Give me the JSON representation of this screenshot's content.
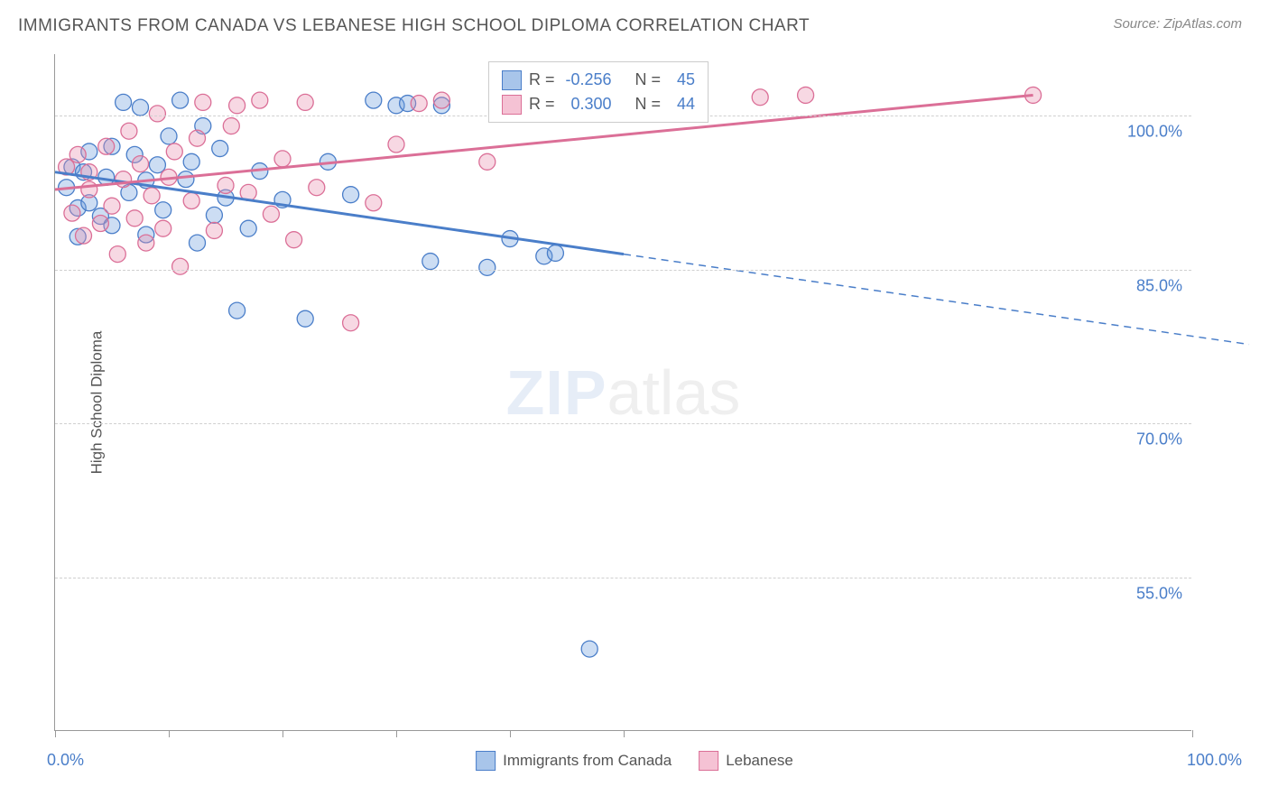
{
  "title": "IMMIGRANTS FROM CANADA VS LEBANESE HIGH SCHOOL DIPLOMA CORRELATION CHART",
  "source": "Source: ZipAtlas.com",
  "y_axis_title": "High School Diploma",
  "watermark": {
    "part1": "ZIP",
    "part2": "atlas"
  },
  "chart": {
    "type": "scatter",
    "background_color": "#ffffff",
    "grid_color": "#d0d0d0",
    "axis_color": "#999999",
    "text_color": "#555555",
    "value_color": "#4a7ec9",
    "xlim": [
      0,
      100
    ],
    "ylim": [
      40,
      106
    ],
    "x_ticks": [
      0,
      10,
      20,
      30,
      40,
      50,
      100
    ],
    "x_tick_labels": {
      "0": "0.0%",
      "100": "100.0%"
    },
    "y_gridlines": [
      55,
      70,
      85,
      100
    ],
    "y_tick_labels": [
      "55.0%",
      "70.0%",
      "85.0%",
      "100.0%"
    ],
    "marker_radius": 9,
    "marker_stroke_width": 1.3,
    "marker_fill_opacity": 0.35,
    "line_width": 3,
    "series": [
      {
        "name": "Immigrants from Canada",
        "color": "#6c9fde",
        "stroke": "#4a7ec9",
        "stats": {
          "R": "-0.256",
          "N": "45"
        },
        "trend": {
          "x1": 0,
          "y1": 94.5,
          "x2": 50,
          "y2": 86.5,
          "solid_to_x": 50,
          "dash_to_x": 105,
          "dash_to_y": 77.7
        },
        "points": [
          [
            1,
            93
          ],
          [
            1.5,
            95
          ],
          [
            2,
            91
          ],
          [
            2,
            88.2
          ],
          [
            2.5,
            94.5
          ],
          [
            3,
            96.5
          ],
          [
            3,
            91.5
          ],
          [
            4,
            90.2
          ],
          [
            4.5,
            94
          ],
          [
            5,
            97
          ],
          [
            5,
            89.3
          ],
          [
            6,
            101.3
          ],
          [
            6.5,
            92.5
          ],
          [
            7,
            96.2
          ],
          [
            7.5,
            100.8
          ],
          [
            8,
            88.4
          ],
          [
            8,
            93.7
          ],
          [
            9,
            95.2
          ],
          [
            9.5,
            90.8
          ],
          [
            10,
            98
          ],
          [
            11,
            101.5
          ],
          [
            11.5,
            93.8
          ],
          [
            12,
            95.5
          ],
          [
            12.5,
            87.6
          ],
          [
            13,
            99
          ],
          [
            14,
            90.3
          ],
          [
            14.5,
            96.8
          ],
          [
            15,
            92
          ],
          [
            16,
            81
          ],
          [
            17,
            89
          ],
          [
            18,
            94.6
          ],
          [
            20,
            91.8
          ],
          [
            22,
            80.2
          ],
          [
            24,
            95.5
          ],
          [
            26,
            92.3
          ],
          [
            28,
            101.5
          ],
          [
            30,
            101
          ],
          [
            31,
            101.2
          ],
          [
            33,
            85.8
          ],
          [
            34,
            101
          ],
          [
            38,
            85.2
          ],
          [
            40,
            88
          ],
          [
            43,
            86.3
          ],
          [
            44,
            86.6
          ],
          [
            47,
            48
          ]
        ]
      },
      {
        "name": "Lebanese",
        "color": "#e98fb0",
        "stroke": "#db6f97",
        "stats": {
          "R": "0.300",
          "N": "44"
        },
        "trend": {
          "x1": 0,
          "y1": 92.8,
          "x2": 86,
          "y2": 102,
          "solid_to_x": 86
        },
        "points": [
          [
            1,
            95
          ],
          [
            1.5,
            90.5
          ],
          [
            2,
            96.2
          ],
          [
            2.5,
            88.3
          ],
          [
            3,
            92.8
          ],
          [
            3,
            94.5
          ],
          [
            4,
            89.5
          ],
          [
            4.5,
            97
          ],
          [
            5,
            91.2
          ],
          [
            5.5,
            86.5
          ],
          [
            6,
            93.8
          ],
          [
            6.5,
            98.5
          ],
          [
            7,
            90
          ],
          [
            7.5,
            95.3
          ],
          [
            8,
            87.6
          ],
          [
            8.5,
            92.2
          ],
          [
            9,
            100.2
          ],
          [
            9.5,
            89
          ],
          [
            10,
            94
          ],
          [
            10.5,
            96.5
          ],
          [
            11,
            85.3
          ],
          [
            12,
            91.7
          ],
          [
            12.5,
            97.8
          ],
          [
            13,
            101.3
          ],
          [
            14,
            88.8
          ],
          [
            15,
            93.2
          ],
          [
            15.5,
            99
          ],
          [
            16,
            101
          ],
          [
            17,
            92.5
          ],
          [
            18,
            101.5
          ],
          [
            19,
            90.4
          ],
          [
            20,
            95.8
          ],
          [
            21,
            87.9
          ],
          [
            22,
            101.3
          ],
          [
            23,
            93
          ],
          [
            26,
            79.8
          ],
          [
            28,
            91.5
          ],
          [
            30,
            97.2
          ],
          [
            32,
            101.2
          ],
          [
            34,
            101.5
          ],
          [
            38,
            95.5
          ],
          [
            62,
            101.8
          ],
          [
            66,
            102
          ],
          [
            86,
            102
          ]
        ]
      }
    ]
  },
  "legend": {
    "items": [
      {
        "label": "Immigrants from Canada",
        "fill": "#a8c5ea",
        "stroke": "#4a7ec9"
      },
      {
        "label": "Lebanese",
        "fill": "#f5c2d4",
        "stroke": "#db6f97"
      }
    ]
  },
  "stat_box": {
    "rows": [
      {
        "swatch_fill": "#a8c5ea",
        "swatch_stroke": "#4a7ec9",
        "R": "-0.256",
        "N": "45"
      },
      {
        "swatch_fill": "#f5c2d4",
        "swatch_stroke": "#db6f97",
        "R": "0.300",
        "N": "44"
      }
    ],
    "labels": {
      "R": "R =",
      "N": "N ="
    }
  }
}
